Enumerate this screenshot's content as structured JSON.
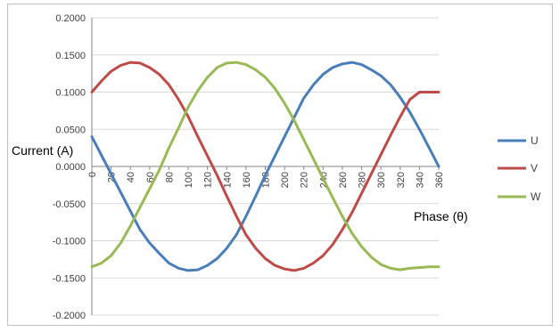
{
  "chart_data": {
    "type": "line",
    "title": "",
    "xlabel": "Phase (θ)",
    "ylabel": "Current (A)",
    "x": [
      0,
      10,
      20,
      30,
      40,
      50,
      60,
      70,
      80,
      90,
      100,
      110,
      120,
      130,
      140,
      150,
      160,
      170,
      180,
      190,
      200,
      210,
      220,
      230,
      240,
      250,
      260,
      270,
      280,
      290,
      300,
      310,
      320,
      330,
      340,
      350,
      360
    ],
    "x_tick_labels": [
      "0",
      "20",
      "40",
      "60",
      "80",
      "100",
      "120",
      "140",
      "160",
      "180",
      "200",
      "220",
      "240",
      "260",
      "280",
      "300",
      "320",
      "340",
      "360"
    ],
    "y_tick_labels": [
      "0.2000",
      "0.1500",
      "0.1000",
      "0.0500",
      "0.0000",
      "-0.0500",
      "-0.1000",
      "-0.1500",
      "-0.2000"
    ],
    "ylim": [
      -0.2,
      0.2
    ],
    "xlim": [
      0,
      360
    ],
    "grid": "horizontal",
    "legend_position": "right",
    "series": [
      {
        "name": "U",
        "color": "#4a7ebb",
        "values": [
          0.04,
          0.015,
          -0.01,
          -0.035,
          -0.06,
          -0.085,
          -0.103,
          -0.117,
          -0.13,
          -0.137,
          -0.14,
          -0.139,
          -0.133,
          -0.124,
          -0.11,
          -0.092,
          -0.067,
          -0.04,
          -0.012,
          0.014,
          0.04,
          0.066,
          0.092,
          0.11,
          0.124,
          0.133,
          0.138,
          0.14,
          0.137,
          0.13,
          0.122,
          0.11,
          0.093,
          0.073,
          0.05,
          0.025,
          0.0
        ]
      },
      {
        "name": "V",
        "color": "#be4b48",
        "values": [
          0.1,
          0.115,
          0.128,
          0.136,
          0.14,
          0.139,
          0.133,
          0.124,
          0.11,
          0.09,
          0.067,
          0.04,
          0.014,
          -0.012,
          -0.04,
          -0.067,
          -0.092,
          -0.11,
          -0.124,
          -0.133,
          -0.138,
          -0.14,
          -0.137,
          -0.13,
          -0.12,
          -0.105,
          -0.085,
          -0.062,
          -0.036,
          -0.01,
          0.016,
          0.042,
          0.067,
          0.09,
          0.1,
          0.1,
          0.1
        ]
      },
      {
        "name": "W",
        "color": "#98b954",
        "values": [
          -0.135,
          -0.13,
          -0.12,
          -0.103,
          -0.08,
          -0.055,
          -0.03,
          -0.005,
          0.025,
          0.052,
          0.08,
          0.102,
          0.12,
          0.133,
          0.139,
          0.14,
          0.137,
          0.13,
          0.12,
          0.105,
          0.085,
          0.062,
          0.036,
          0.01,
          -0.016,
          -0.042,
          -0.067,
          -0.09,
          -0.108,
          -0.122,
          -0.132,
          -0.137,
          -0.139,
          -0.137,
          -0.136,
          -0.135,
          -0.135
        ]
      }
    ]
  }
}
